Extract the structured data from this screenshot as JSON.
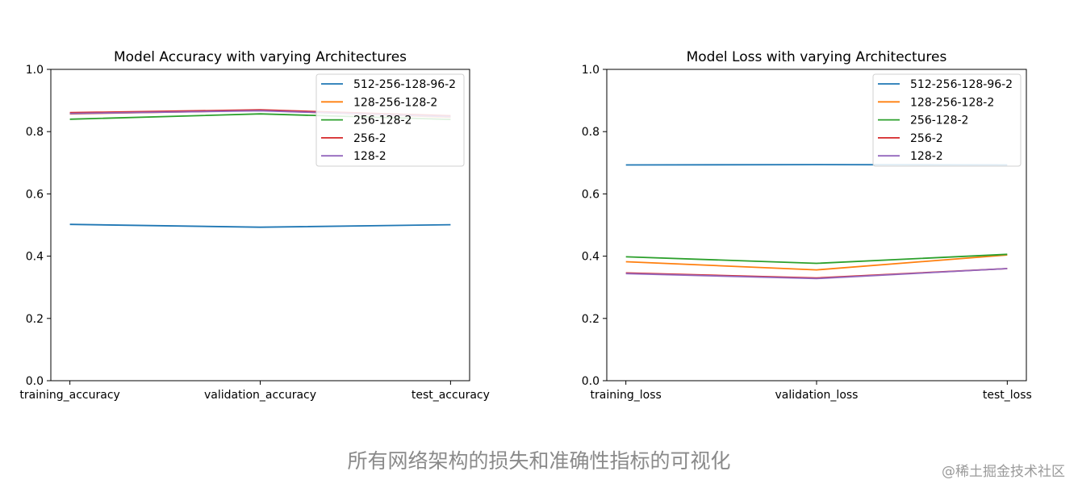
{
  "colors": {
    "blue": "#1f77b4",
    "orange": "#ff7f0e",
    "green": "#2ca02c",
    "red": "#d62728",
    "purple": "#9467bd"
  },
  "chart_data": [
    {
      "type": "line",
      "title": "Model Accuracy with varying Architectures",
      "xlabel": "",
      "ylabel": "",
      "categories": [
        "training_accuracy",
        "validation_accuracy",
        "test_accuracy"
      ],
      "ylim": [
        0.0,
        1.0
      ],
      "yticks": [
        0.0,
        0.2,
        0.4,
        0.6,
        0.8,
        1.0
      ],
      "ytick_labels": [
        "0.0",
        "0.2",
        "0.4",
        "0.6",
        "0.8",
        "1.0"
      ],
      "legend": "top-right",
      "series": [
        {
          "name": "512-256-128-96-2",
          "color": "#1f77b4",
          "values": [
            0.502,
            0.493,
            0.501
          ]
        },
        {
          "name": "128-256-128-2",
          "color": "#ff7f0e",
          "values": [
            0.857,
            0.868,
            0.846
          ]
        },
        {
          "name": "256-128-2",
          "color": "#2ca02c",
          "values": [
            0.84,
            0.857,
            0.839
          ]
        },
        {
          "name": "256-2",
          "color": "#d62728",
          "values": [
            0.861,
            0.87,
            0.851
          ]
        },
        {
          "name": "128-2",
          "color": "#9467bd",
          "values": [
            0.858,
            0.867,
            0.848
          ]
        }
      ]
    },
    {
      "type": "line",
      "title": "Model Loss with varying Architectures",
      "xlabel": "",
      "ylabel": "",
      "categories": [
        "training_loss",
        "validation_loss",
        "test_loss"
      ],
      "ylim": [
        0.0,
        1.0
      ],
      "yticks": [
        0.0,
        0.2,
        0.4,
        0.6,
        0.8,
        1.0
      ],
      "ytick_labels": [
        "0.0",
        "0.2",
        "0.4",
        "0.6",
        "0.8",
        "1.0"
      ],
      "legend": "top-right",
      "series": [
        {
          "name": "512-256-128-96-2",
          "color": "#1f77b4",
          "values": [
            0.693,
            0.694,
            0.693
          ]
        },
        {
          "name": "128-256-128-2",
          "color": "#ff7f0e",
          "values": [
            0.382,
            0.356,
            0.404
          ]
        },
        {
          "name": "256-128-2",
          "color": "#2ca02c",
          "values": [
            0.398,
            0.377,
            0.406
          ]
        },
        {
          "name": "256-2",
          "color": "#d62728",
          "values": [
            0.346,
            0.33,
            0.36
          ]
        },
        {
          "name": "128-2",
          "color": "#9467bd",
          "values": [
            0.344,
            0.328,
            0.36
          ]
        }
      ]
    }
  ],
  "caption": "所有网络架构的损失和准确性指标的可视化",
  "watermark": "@稀土掘金技术社区"
}
